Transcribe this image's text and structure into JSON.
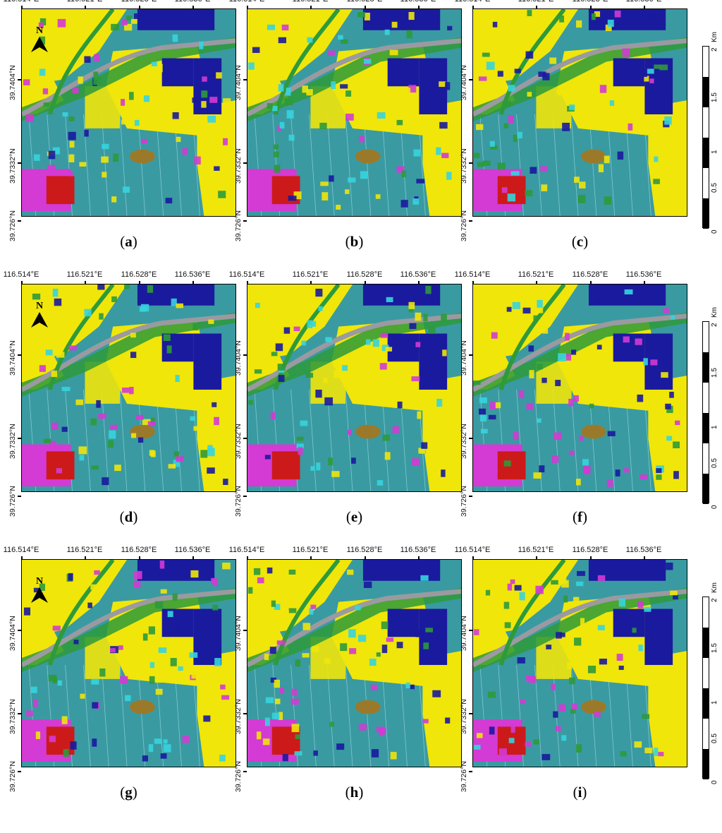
{
  "lon_labels": [
    "116.514°E",
    "116.521°E",
    "116.528°E",
    "116.536°E"
  ],
  "lat_labels": [
    "39.7404°N",
    "39.7332°N",
    "39.726°N"
  ],
  "north_label": "N",
  "scale": {
    "unit": "Km",
    "ticks": [
      "2",
      "1.5",
      "1",
      "0.5",
      "0"
    ]
  },
  "panels": [
    {
      "caption_letter": "a"
    },
    {
      "caption_letter": "b"
    },
    {
      "caption_letter": "c"
    },
    {
      "caption_letter": "d"
    },
    {
      "caption_letter": "e"
    },
    {
      "caption_letter": "f"
    },
    {
      "caption_letter": "g"
    },
    {
      "caption_letter": "h"
    },
    {
      "caption_letter": "i"
    }
  ],
  "class_colors": {
    "background": "#3a9aa2",
    "impervious": "#f0e60a",
    "high_density": "#1a1a9e",
    "medium": "#d43ad4",
    "dense_red": "#cc1a1a",
    "vegetation": "#2e9a3a",
    "water": "#9a7a2a",
    "road": "#9a9aa0"
  }
}
